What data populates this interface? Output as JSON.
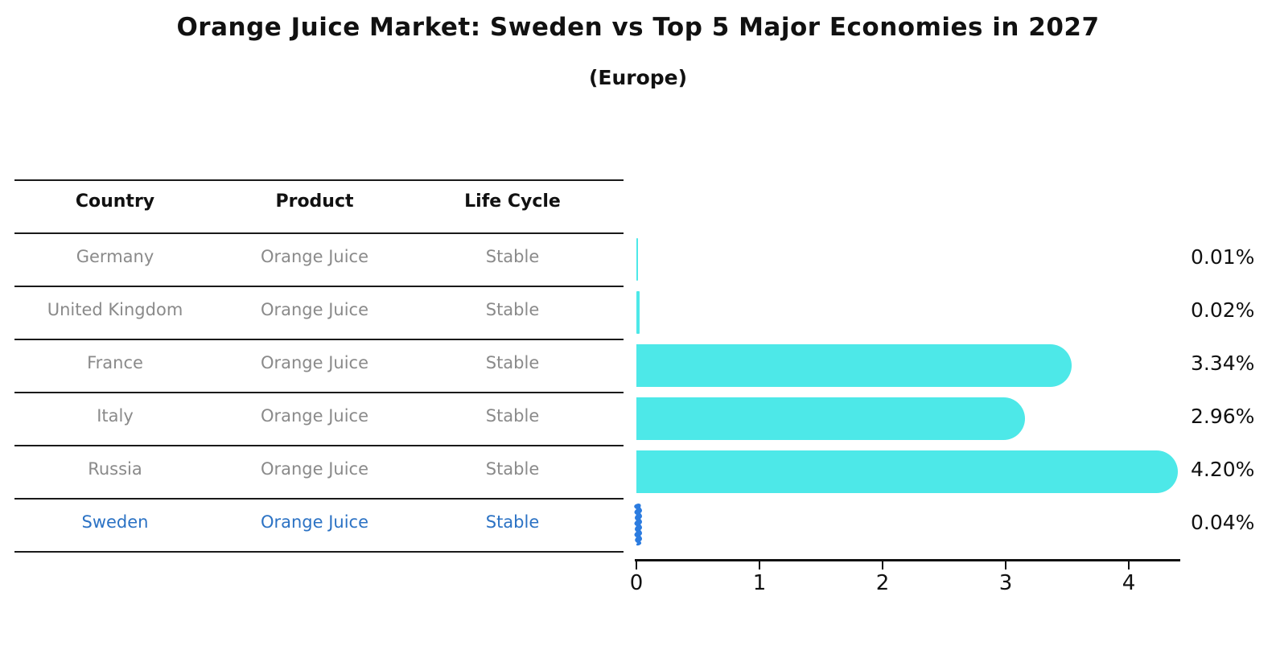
{
  "title": "Orange Juice Market: Sweden vs Top 5 Major Economies in 2027",
  "subtitle": "(Europe)",
  "table": {
    "headers": [
      "Country",
      "Product",
      "Life Cycle"
    ],
    "rows": [
      {
        "country": "Germany",
        "product": "Orange Juice",
        "life_cycle": "Stable",
        "highlight": false
      },
      {
        "country": "United Kingdom",
        "product": "Orange Juice",
        "life_cycle": "Stable",
        "highlight": false
      },
      {
        "country": "France",
        "product": "Orange Juice",
        "life_cycle": "Stable",
        "highlight": false
      },
      {
        "country": "Italy",
        "product": "Orange Juice",
        "life_cycle": "Stable",
        "highlight": false
      },
      {
        "country": "Russia",
        "product": "Orange Juice",
        "life_cycle": "Stable",
        "highlight": true
      }
    ],
    "highlight_row": {
      "country": "Sweden",
      "product": "Orange Juice",
      "life_cycle": "Stable"
    }
  },
  "chart_data": {
    "type": "bar",
    "orientation": "horizontal",
    "title": "Orange Juice Market: Sweden vs Top 5 Major Economies in 2027",
    "subtitle": "(Europe)",
    "categories": [
      "Germany",
      "United Kingdom",
      "France",
      "Italy",
      "Russia",
      "Sweden"
    ],
    "values": [
      0.01,
      0.02,
      3.34,
      2.96,
      4.2,
      0.04
    ],
    "value_labels": [
      "0.01%",
      "0.02%",
      "3.34%",
      "2.96%",
      "4.20%",
      "0.04%"
    ],
    "xticks": [
      "0",
      "1",
      "2",
      "3",
      "4"
    ],
    "xtick_values": [
      0,
      1,
      2,
      3,
      4
    ],
    "xlim": [
      0,
      4.4
    ],
    "grid": false,
    "legend": false,
    "bar_color": "#4de8e8",
    "highlight_bar_color": "#2c7ce0",
    "highlight_text_color": "#2b72c4",
    "row_text_color": "#8a8a8a",
    "highlight_index": 5
  }
}
